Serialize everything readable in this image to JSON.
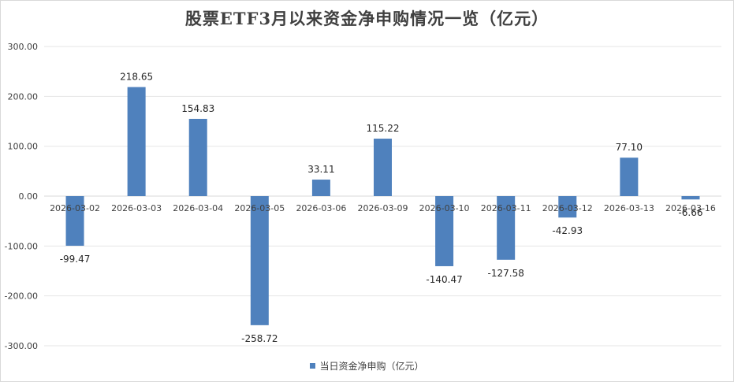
{
  "chart_data": {
    "type": "bar",
    "title": "股票ETF3月以来资金净申购情况一览（亿元）",
    "categories": [
      "2026-03-02",
      "2026-03-03",
      "2026-03-04",
      "2026-03-05",
      "2026-03-06",
      "2026-03-09",
      "2026-03-10",
      "2026-03-11",
      "2026-03-12",
      "2026-03-13",
      "2026-03-16"
    ],
    "series": [
      {
        "name": "当日资金净申购（亿元）",
        "values": [
          -99.47,
          218.65,
          154.83,
          -258.72,
          33.11,
          115.22,
          -140.47,
          -127.58,
          -42.93,
          77.1,
          -6.66
        ],
        "data_labels": [
          "-99.47",
          "218.65",
          "154.83",
          "-258.72",
          "33.11",
          "115.22",
          "-140.47",
          "-127.58",
          "-42.93",
          "77.10",
          "-6.66"
        ]
      }
    ],
    "ylim": [
      -300,
      300
    ],
    "y_ticks": [
      "300.00",
      "200.00",
      "100.00",
      "0.00",
      "-100.00",
      "-200.00",
      "-300.00"
    ],
    "xlabel": "",
    "ylabel": "",
    "grid": true,
    "legend": "bottom",
    "bar_color": "#4f81bd"
  }
}
